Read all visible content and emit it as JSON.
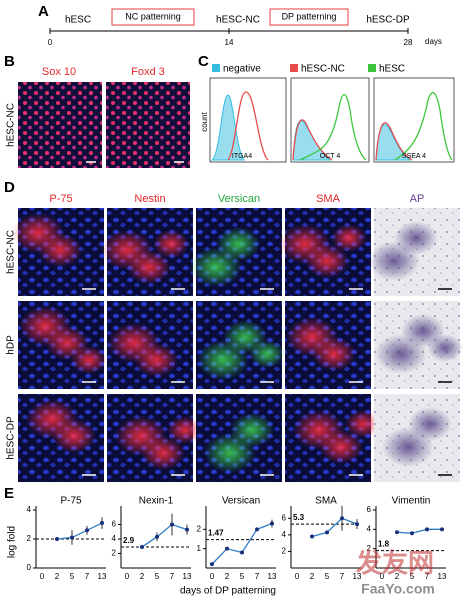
{
  "panel_a": {
    "letter": "A",
    "stages": [
      "hESC",
      "hESC-NC",
      "hESC-DP"
    ],
    "steps": [
      "NC patterning",
      "DP patterning"
    ],
    "days": [
      0,
      14,
      28
    ],
    "days_label": "days"
  },
  "panel_b": {
    "letter": "B",
    "row_label": "hESC-NC",
    "markers": [
      "Sox 10",
      "Foxd 3"
    ]
  },
  "panel_c": {
    "letter": "C",
    "legend": [
      "negative",
      "hESC-NC",
      "hESC"
    ],
    "legend_colors": [
      "#33bde0",
      "#e84b4b",
      "#3cc63c"
    ],
    "y_label": "count",
    "markers": [
      "ITGA4",
      "OCT 4",
      "SSEA 4"
    ]
  },
  "panel_d": {
    "letter": "D",
    "markers": [
      "P-75",
      "Nestin",
      "Versican",
      "SMA",
      "AP"
    ],
    "marker_colors": [
      "#e8262b",
      "#e8262b",
      "#1fa83a",
      "#e8262b",
      "#6b3f96"
    ],
    "rows": [
      "hESC-NC",
      "hDP",
      "hESC-DP"
    ]
  },
  "panel_e": {
    "letter": "E",
    "y_label": "log fold",
    "x_label": "days of DP patterning",
    "charts": [
      {
        "title": "P-75",
        "categories": [
          "0",
          "2",
          "5",
          "7",
          "13"
        ],
        "values": [
          null,
          2.0,
          2.1,
          2.6,
          3.1
        ],
        "errors": [
          null,
          null,
          0.5,
          0.3,
          0.4
        ],
        "reference_line": 2.0,
        "ylim": [
          0,
          4
        ],
        "yticks": [
          0,
          2,
          4
        ]
      },
      {
        "title": "Nexin-1",
        "categories": [
          "0",
          "2",
          "5",
          "7",
          "13"
        ],
        "values": [
          null,
          2.9,
          4.3,
          6.0,
          5.3
        ],
        "errors": [
          null,
          null,
          0.6,
          1.5,
          0.7
        ],
        "reference": 2.9,
        "ylim": [
          0,
          8
        ],
        "yticks": [
          2,
          4,
          6
        ]
      },
      {
        "title": "Versican",
        "categories": [
          "0",
          "2",
          "5",
          "7",
          "13"
        ],
        "values": [
          0.2,
          1.0,
          0.8,
          2.0,
          2.3
        ],
        "errors": [
          null,
          null,
          null,
          null,
          0.2
        ],
        "reference": 1.47,
        "ylim": [
          0,
          3
        ],
        "yticks": [
          1,
          2
        ]
      },
      {
        "title": "SMA",
        "categories": [
          "0",
          "2",
          "5",
          "7",
          "13"
        ],
        "values": [
          null,
          3.8,
          4.3,
          6.0,
          5.3
        ],
        "errors": [
          null,
          null,
          null,
          1.5,
          0.6
        ],
        "reference": 5.3,
        "ylim": [
          0,
          7
        ],
        "yticks": [
          2,
          4,
          6
        ]
      },
      {
        "title": "Vimentin",
        "categories": [
          "0",
          "2",
          "5",
          "7",
          "13"
        ],
        "values": [
          null,
          3.7,
          3.6,
          4.0,
          4.0
        ],
        "errors": [
          null,
          null,
          null,
          null,
          null
        ],
        "reference": 1.8,
        "ylim": [
          0,
          6
        ],
        "yticks": [
          2,
          4,
          6
        ]
      }
    ]
  },
  "watermark": [
    "发友网",
    "FaaYo.com"
  ]
}
